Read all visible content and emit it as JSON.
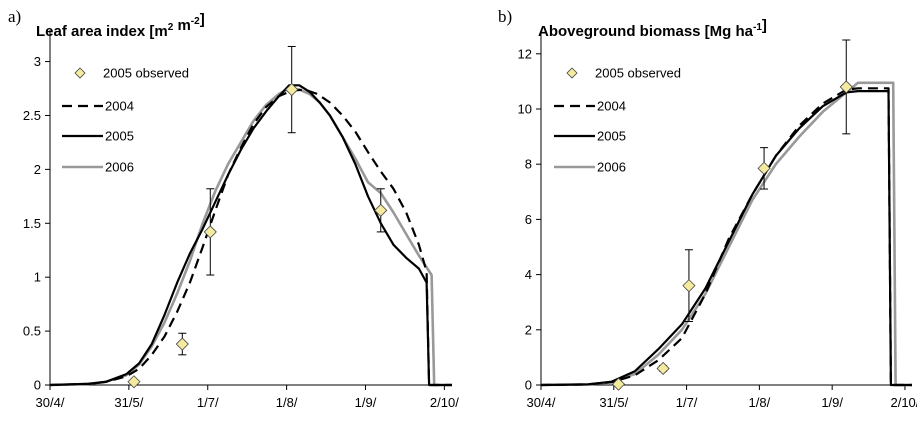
{
  "chart_data": [
    {
      "panel": "a)",
      "type": "line",
      "title": "Leaf area index [m",
      "title_sup1": "2",
      "title_mid": " m",
      "title_sup2": "-2",
      "title_end": "]",
      "xlabel": "",
      "ylabel": "",
      "x_tick_labels": [
        "30/4/",
        "31/5/",
        "1/7/",
        "1/8/",
        "1/9/",
        "2/10/"
      ],
      "x_ticks_doy": [
        120,
        151,
        182,
        213,
        244,
        275
      ],
      "xlim": [
        120,
        278
      ],
      "ylim": [
        0,
        3.2
      ],
      "y_ticks": [
        0,
        0.5,
        1,
        1.5,
        2,
        2.5,
        3
      ],
      "y_tick_labels": [
        "0",
        "0.5",
        "1",
        "1.5",
        "2",
        "2.5",
        "3"
      ],
      "legend": [
        "2005 observed",
        "2004",
        "2005",
        "2006"
      ],
      "legend_position": "top-left",
      "observed": {
        "name": "2005 observed",
        "color": "#f5eba0",
        "points": [
          {
            "x": 153,
            "y": 0.03
          },
          {
            "x": 172,
            "y": 0.38,
            "err": 0.1
          },
          {
            "x": 183,
            "y": 1.42,
            "err": 0.4
          },
          {
            "x": 215,
            "y": 2.74,
            "err": 0.4
          },
          {
            "x": 250,
            "y": 1.62,
            "err": 0.2
          }
        ]
      },
      "series": [
        {
          "name": "2004",
          "color": "#000000",
          "dash": "10,6",
          "x": [
            120,
            135,
            142,
            150,
            155,
            160,
            165,
            170,
            175,
            180,
            185,
            190,
            195,
            200,
            205,
            210,
            215,
            220,
            225,
            230,
            235,
            240,
            245,
            250,
            255,
            260,
            265,
            268,
            269,
            278
          ],
          "y": [
            0,
            0.01,
            0.03,
            0.08,
            0.15,
            0.28,
            0.45,
            0.68,
            0.95,
            1.28,
            1.62,
            1.95,
            2.2,
            2.42,
            2.58,
            2.68,
            2.73,
            2.74,
            2.7,
            2.62,
            2.5,
            2.35,
            2.16,
            1.98,
            1.82,
            1.6,
            1.3,
            1.05,
            0,
            0
          ]
        },
        {
          "name": "2005",
          "color": "#000000",
          "dash": "",
          "x": [
            120,
            135,
            142,
            150,
            155,
            160,
            165,
            170,
            175,
            180,
            185,
            190,
            195,
            200,
            205,
            210,
            214,
            218,
            222,
            226,
            230,
            235,
            240,
            245,
            250,
            255,
            260,
            265,
            268,
            269,
            278
          ],
          "y": [
            0,
            0.01,
            0.03,
            0.1,
            0.2,
            0.38,
            0.65,
            0.95,
            1.22,
            1.45,
            1.7,
            1.95,
            2.18,
            2.38,
            2.54,
            2.68,
            2.78,
            2.78,
            2.72,
            2.62,
            2.5,
            2.3,
            2.05,
            1.75,
            1.5,
            1.3,
            1.18,
            1.08,
            0.95,
            0,
            0
          ]
        },
        {
          "name": "2006",
          "color": "#999999",
          "dash": "",
          "x": [
            120,
            135,
            142,
            150,
            155,
            160,
            165,
            170,
            175,
            180,
            185,
            190,
            195,
            200,
            205,
            210,
            214,
            218,
            222,
            226,
            230,
            235,
            240,
            245,
            250,
            255,
            260,
            265,
            270,
            271,
            278
          ],
          "y": [
            0,
            0.01,
            0.03,
            0.09,
            0.19,
            0.36,
            0.58,
            0.85,
            1.15,
            1.5,
            1.8,
            2.05,
            2.25,
            2.45,
            2.6,
            2.7,
            2.75,
            2.74,
            2.7,
            2.62,
            2.5,
            2.3,
            2.1,
            1.88,
            1.78,
            1.6,
            1.4,
            1.2,
            1.02,
            0,
            0
          ]
        }
      ]
    },
    {
      "panel": "b)",
      "type": "line",
      "title": "Aboveground biomass [Mg ha",
      "title_sup1": "-1",
      "title_mid": "",
      "title_sup2": "",
      "title_end": "]",
      "xlabel": "",
      "ylabel": "",
      "x_tick_labels": [
        "30/4/",
        "31/5/",
        "1/7/",
        "1/8/",
        "1/9/",
        "2/10/"
      ],
      "x_ticks_doy": [
        120,
        151,
        182,
        213,
        244,
        275
      ],
      "xlim": [
        120,
        278
      ],
      "ylim": [
        0,
        12.5
      ],
      "y_ticks": [
        0,
        2,
        4,
        6,
        8,
        10,
        12
      ],
      "y_tick_labels": [
        "0",
        "2",
        "4",
        "6",
        "8",
        "10",
        "12"
      ],
      "legend": [
        "2005 observed",
        "2004",
        "2005",
        "2006"
      ],
      "legend_position": "top-left",
      "observed": {
        "name": "2005 observed",
        "color": "#f5eba0",
        "points": [
          {
            "x": 153,
            "y": 0.03
          },
          {
            "x": 172,
            "y": 0.6,
            "err": 0.1
          },
          {
            "x": 183,
            "y": 3.6,
            "err": 1.3
          },
          {
            "x": 215,
            "y": 7.85,
            "err": 0.75
          },
          {
            "x": 250,
            "y": 10.8,
            "err": 1.7
          }
        ]
      },
      "series": [
        {
          "name": "2004",
          "color": "#000000",
          "dash": "10,6",
          "x": [
            120,
            140,
            150,
            160,
            170,
            180,
            190,
            200,
            210,
            220,
            230,
            240,
            250,
            255,
            268,
            269,
            278
          ],
          "y": [
            0,
            0.02,
            0.1,
            0.35,
            0.9,
            1.7,
            3.3,
            5.3,
            6.9,
            8.3,
            9.4,
            10.2,
            10.7,
            10.75,
            10.75,
            0,
            0
          ]
        },
        {
          "name": "2005",
          "color": "#000000",
          "dash": "",
          "x": [
            120,
            140,
            150,
            160,
            170,
            180,
            190,
            200,
            210,
            220,
            230,
            240,
            250,
            255,
            268,
            269,
            278
          ],
          "y": [
            0,
            0.02,
            0.12,
            0.5,
            1.3,
            2.2,
            3.5,
            5.2,
            6.9,
            8.3,
            9.3,
            10.1,
            10.6,
            10.65,
            10.65,
            0,
            0
          ]
        },
        {
          "name": "2006",
          "color": "#999999",
          "dash": "",
          "x": [
            120,
            140,
            150,
            160,
            170,
            180,
            190,
            200,
            210,
            220,
            230,
            240,
            250,
            255,
            270,
            271,
            278
          ],
          "y": [
            0,
            0.02,
            0.1,
            0.4,
            1.1,
            2.0,
            3.3,
            5.0,
            6.7,
            8.0,
            9.0,
            9.9,
            10.6,
            10.95,
            10.95,
            0,
            0
          ]
        }
      ]
    }
  ]
}
